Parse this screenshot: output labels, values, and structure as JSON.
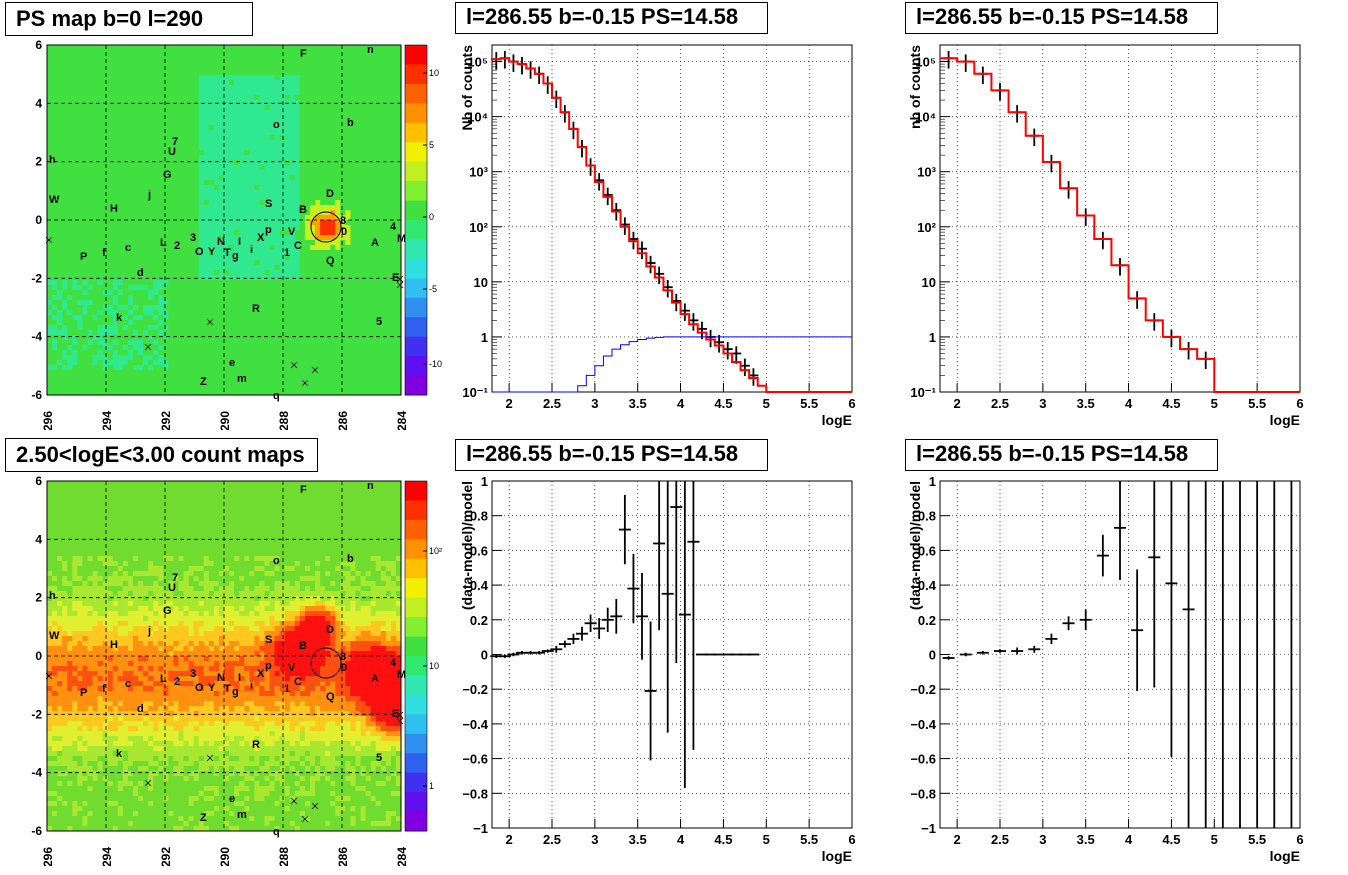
{
  "titles": {
    "map_top": "PS map b=0 l=290",
    "map_bottom": "2.50<logE<3.00 count maps",
    "spec_left": "l=286.55 b=-0.15 PS=14.58",
    "spec_right": "l=286.55 b=-0.15 PS=14.58",
    "res_left": "l=286.55 b=-0.15 PS=14.58",
    "res_right": "l=286.55 b=-0.15 PS=14.58"
  },
  "maps": {
    "x_ticks": [
      "296",
      "294",
      "292",
      "290",
      "288",
      "286",
      "284"
    ],
    "y_ticks": [
      "6",
      "4",
      "2",
      "0",
      "-2",
      "-4",
      "-6"
    ],
    "colorbar_top": [
      "10",
      "5",
      "0",
      "-5",
      "-10"
    ],
    "colorbar_bottom": [
      "10²",
      "10",
      "1"
    ],
    "source_labels": [
      "F",
      "n",
      "o",
      "b",
      "7",
      "U",
      "h",
      "G",
      "j",
      "W",
      "H",
      "S",
      "D",
      "B",
      "8",
      "4",
      "p",
      "V",
      "0",
      "A",
      "M",
      "L",
      "2",
      "3",
      "I",
      "N",
      "X",
      "i",
      "c",
      "1",
      "C",
      "O",
      "Y",
      "T",
      "g",
      "P",
      "f",
      "d",
      "Q",
      "E",
      "R",
      "k",
      "5",
      "e",
      "m",
      "Z",
      "q"
    ]
  },
  "chart_data": [
    {
      "type": "line",
      "title": "l=286.55 b=-0.15 PS=14.58",
      "xlabel": "logE",
      "ylabel": "Nb of counts",
      "yscale": "log",
      "xlim": [
        1.8,
        6
      ],
      "ylim": [
        0.1,
        200000
      ],
      "x_ticks": [
        "2",
        "2.5",
        "3",
        "3.5",
        "4",
        "4.5",
        "5",
        "5.5",
        "6"
      ],
      "y_ticks": [
        "10⁻¹",
        "1",
        "10",
        "10²",
        "10³",
        "10⁴",
        "10⁵"
      ],
      "series": [
        {
          "color": "#000000",
          "style": "errorbars",
          "x": [
            1.85,
            1.95,
            2.05,
            2.15,
            2.25,
            2.35,
            2.45,
            2.55,
            2.65,
            2.75,
            2.85,
            2.95,
            3.05,
            3.15,
            3.25,
            3.35,
            3.45,
            3.55,
            3.65,
            3.75,
            3.85,
            3.95,
            4.05,
            4.15,
            4.25,
            4.35,
            4.45,
            4.55,
            4.65,
            4.75,
            4.85
          ],
          "y": [
            110000,
            115000,
            100000,
            90000,
            75000,
            60000,
            40000,
            22000,
            12000,
            6000,
            2800,
            1300,
            700,
            380,
            200,
            110,
            60,
            40,
            22,
            14,
            8,
            4.5,
            3,
            2,
            1.4,
            1,
            0.8,
            0.6,
            0.5,
            0.3,
            0.2
          ]
        },
        {
          "color": "#ff0000",
          "style": "step",
          "x": [
            1.8,
            1.9,
            2.0,
            2.1,
            2.2,
            2.3,
            2.4,
            2.5,
            2.6,
            2.7,
            2.8,
            2.9,
            3.0,
            3.1,
            3.2,
            3.3,
            3.4,
            3.5,
            3.6,
            3.7,
            3.8,
            3.9,
            4.0,
            4.1,
            4.2,
            4.3,
            4.4,
            4.5,
            4.6,
            4.7,
            4.8,
            4.9,
            5.0,
            6.0
          ],
          "y": [
            110000,
            115000,
            100000,
            90000,
            75000,
            60000,
            40000,
            22000,
            12000,
            6000,
            2800,
            1300,
            650,
            350,
            190,
            100,
            55,
            33,
            19,
            12,
            7,
            4.2,
            2.6,
            1.7,
            1.2,
            0.9,
            0.7,
            0.5,
            0.35,
            0.25,
            0.18,
            0.13,
            0.1,
            0.1
          ]
        },
        {
          "color": "#0000ff",
          "style": "step",
          "x": [
            1.8,
            2.7,
            2.8,
            2.9,
            3.0,
            3.1,
            3.2,
            3.3,
            3.4,
            3.5,
            3.6,
            3.7,
            3.8,
            3.9,
            4.0,
            6.0
          ],
          "y": [
            0.1,
            0.1,
            0.13,
            0.2,
            0.3,
            0.45,
            0.6,
            0.72,
            0.82,
            0.9,
            0.95,
            0.98,
            1,
            1,
            1,
            1
          ]
        }
      ]
    },
    {
      "type": "line",
      "title": "l=286.55 b=-0.15 PS=14.58",
      "xlabel": "logE",
      "ylabel": "nb of counts",
      "yscale": "log",
      "xlim": [
        1.8,
        6
      ],
      "ylim": [
        0.1,
        200000
      ],
      "x_ticks": [
        "2",
        "2.5",
        "3",
        "3.5",
        "4",
        "4.5",
        "5",
        "5.5",
        "6"
      ],
      "y_ticks": [
        "10⁻¹",
        "1",
        "10",
        "10²",
        "10³",
        "10⁴",
        "10⁵"
      ],
      "series": [
        {
          "color": "#000000",
          "style": "errorbars",
          "x": [
            1.9,
            2.1,
            2.3,
            2.5,
            2.7,
            2.9,
            3.1,
            3.3,
            3.5,
            3.7,
            3.9,
            4.1,
            4.3,
            4.5,
            4.7,
            4.9
          ],
          "y": [
            115000,
            100000,
            60000,
            30000,
            12000,
            4500,
            1500,
            500,
            160,
            60,
            20,
            5,
            2,
            1,
            0.6,
            0.4
          ]
        },
        {
          "color": "#ff0000",
          "style": "step",
          "x": [
            1.8,
            2.0,
            2.2,
            2.4,
            2.6,
            2.8,
            3.0,
            3.2,
            3.4,
            3.6,
            3.8,
            4.0,
            4.2,
            4.4,
            4.6,
            4.8,
            5.0,
            6.0
          ],
          "y": [
            115000,
            100000,
            60000,
            30000,
            12000,
            4500,
            1500,
            500,
            160,
            60,
            20,
            5,
            2,
            1,
            0.6,
            0.4,
            0.1,
            0.1
          ]
        }
      ]
    },
    {
      "type": "scatter",
      "title": "l=286.55 b=-0.15 PS=14.58",
      "xlabel": "logE",
      "ylabel": "(data-model)/model",
      "xlim": [
        1.8,
        6
      ],
      "ylim": [
        -1,
        1
      ],
      "x_ticks": [
        "2",
        "2.5",
        "3",
        "3.5",
        "4",
        "4.5",
        "5",
        "5.5",
        "6"
      ],
      "y_ticks": [
        "−1",
        "−0.8",
        "−0.6",
        "−0.4",
        "−0.2",
        "0",
        "0.2",
        "0.4",
        "0.6",
        "0.8",
        "1"
      ],
      "series": [
        {
          "color": "#000000",
          "style": "errorbars",
          "x": [
            1.85,
            1.95,
            2.05,
            2.15,
            2.25,
            2.35,
            2.45,
            2.55,
            2.65,
            2.75,
            2.85,
            2.95,
            3.05,
            3.15,
            3.25,
            3.35,
            3.45,
            3.55,
            3.65,
            3.75,
            3.85,
            3.95,
            4.05,
            4.15,
            4.25,
            4.35,
            4.45,
            4.55,
            4.65,
            4.75,
            4.85
          ],
          "y": [
            -0.01,
            -0.01,
            0,
            0.01,
            0.01,
            0.01,
            0.02,
            0.03,
            0.06,
            0.09,
            0.12,
            0.18,
            0.15,
            0.2,
            0.22,
            0.72,
            0.38,
            0.22,
            -0.21,
            0.64,
            0.35,
            0.85,
            0.23,
            0.65,
            0,
            0,
            0,
            0,
            0,
            0,
            0
          ],
          "err": [
            0.01,
            0.01,
            0.01,
            0.01,
            0.01,
            0.01,
            0.01,
            0.02,
            0.02,
            0.03,
            0.04,
            0.05,
            0.06,
            0.07,
            0.1,
            0.2,
            0.2,
            0.25,
            0.4,
            0.5,
            0.8,
            0.9,
            1,
            1.2,
            0,
            0,
            0,
            0,
            0,
            0,
            0
          ]
        }
      ]
    },
    {
      "type": "scatter",
      "title": "l=286.55 b=-0.15 PS=14.58",
      "xlabel": "logE",
      "ylabel": "(data-model)/model",
      "xlim": [
        1.8,
        6
      ],
      "ylim": [
        -1,
        1
      ],
      "x_ticks": [
        "2",
        "2.5",
        "3",
        "3.5",
        "4",
        "4.5",
        "5",
        "5.5",
        "6"
      ],
      "y_ticks": [
        "−1",
        "−0.8",
        "−0.6",
        "−0.4",
        "−0.2",
        "0",
        "0.2",
        "0.4",
        "0.6",
        "0.8",
        "1"
      ],
      "series": [
        {
          "color": "#000000",
          "style": "errorbars",
          "x": [
            1.9,
            2.1,
            2.3,
            2.5,
            2.7,
            2.9,
            3.1,
            3.3,
            3.5,
            3.7,
            3.9,
            4.1,
            4.3,
            4.5,
            4.7,
            4.9,
            5.1,
            5.3,
            5.5,
            5.7,
            5.9
          ],
          "y": [
            -0.02,
            0,
            0.01,
            0.02,
            0.02,
            0.03,
            0.09,
            0.18,
            0.2,
            0.57,
            0.73,
            0.14,
            0.56,
            0.41,
            0.26,
            0,
            0,
            0,
            0,
            0,
            0
          ],
          "err": [
            0.01,
            0.01,
            0.01,
            0.01,
            0.02,
            0.02,
            0.03,
            0.04,
            0.06,
            0.12,
            0.3,
            0.35,
            0.75,
            1,
            1.3,
            1.5,
            1.5,
            1.5,
            1.5,
            1.5,
            1.5
          ]
        }
      ]
    }
  ]
}
